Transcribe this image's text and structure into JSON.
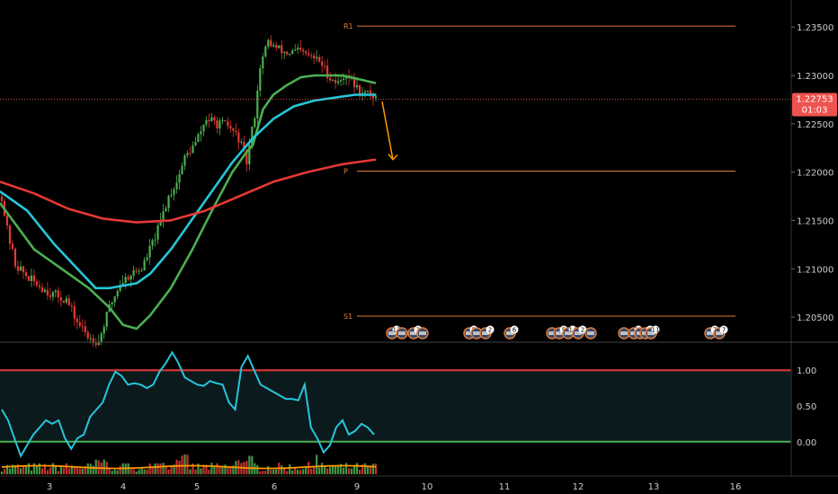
{
  "chart_data": [
    {
      "type": "candlestick",
      "title": "",
      "x_ticks": [
        "3",
        "4",
        "5",
        "6",
        "9",
        "10",
        "11",
        "12",
        "13",
        "16"
      ],
      "y_ticks": [
        "1.23500",
        "1.23000",
        "1.22500",
        "1.22000",
        "1.21500",
        "1.21000",
        "1.20500"
      ],
      "ylim": [
        1.2025,
        1.2378
      ],
      "current_price": "1.22753",
      "countdown": "01:03",
      "pivot_levels": [
        {
          "label": "R1",
          "value": 1.2351
        },
        {
          "label": "P",
          "value": 1.2201
        },
        {
          "label": "S1",
          "value": 1.2051
        }
      ],
      "series": [
        {
          "name": "",
          "kind": "ema-fast",
          "color": "#4caf50",
          "points": [
            [
              0,
              1.2168
            ],
            [
              0.5,
              1.212
            ],
            [
              1,
              1.2095
            ],
            [
              1.3,
              1.208
            ],
            [
              1.6,
              1.206
            ],
            [
              1.8,
              1.2042
            ],
            [
              2.0,
              1.2038
            ],
            [
              2.2,
              1.2052
            ],
            [
              2.5,
              1.208
            ],
            [
              2.8,
              1.2118
            ],
            [
              3.1,
              1.216
            ],
            [
              3.4,
              1.22
            ],
            [
              3.6,
              1.222
            ],
            [
              3.7,
              1.2228
            ],
            [
              3.85,
              1.2265
            ],
            [
              4.0,
              1.228
            ],
            [
              4.2,
              1.229
            ],
            [
              4.4,
              1.2298
            ],
            [
              4.6,
              1.23
            ],
            [
              4.8,
              1.23
            ],
            [
              5.0,
              1.23
            ],
            [
              5.2,
              1.2297
            ],
            [
              5.5,
              1.2292
            ]
          ]
        },
        {
          "name": "",
          "kind": "ema-mid",
          "color": "#26c6da",
          "points": [
            [
              0,
              1.218
            ],
            [
              0.4,
              1.216
            ],
            [
              0.8,
              1.2125
            ],
            [
              1.2,
              1.2095
            ],
            [
              1.4,
              1.208
            ],
            [
              1.6,
              1.208
            ],
            [
              2.0,
              1.2085
            ],
            [
              2.2,
              1.2095
            ],
            [
              2.5,
              1.212
            ],
            [
              2.8,
              1.215
            ],
            [
              3.1,
              1.218
            ],
            [
              3.4,
              1.221
            ],
            [
              3.7,
              1.2235
            ],
            [
              4.0,
              1.2255
            ],
            [
              4.3,
              1.2268
            ],
            [
              4.6,
              1.2274
            ],
            [
              4.9,
              1.2277
            ],
            [
              5.2,
              1.228
            ],
            [
              5.5,
              1.228
            ]
          ]
        },
        {
          "name": "",
          "kind": "ema-slow",
          "color": "#e53935",
          "points": [
            [
              0,
              1.219
            ],
            [
              0.5,
              1.2178
            ],
            [
              1.0,
              1.2162
            ],
            [
              1.5,
              1.2152
            ],
            [
              2.0,
              1.2148
            ],
            [
              2.5,
              1.215
            ],
            [
              3.0,
              1.216
            ],
            [
              3.5,
              1.2175
            ],
            [
              4.0,
              1.219
            ],
            [
              4.5,
              1.22
            ],
            [
              5.0,
              1.2208
            ],
            [
              5.5,
              1.2213
            ]
          ]
        }
      ],
      "projection": {
        "color": "#ff9800",
        "from": [
          5.6,
          1.2273
        ],
        "to": [
          5.8,
          1.2213
        ]
      }
    },
    {
      "type": "line",
      "title": "",
      "y_ticks": [
        "1.00",
        "0.50",
        "0.00"
      ],
      "ylim": [
        -0.48,
        1.38
      ],
      "bands": [
        {
          "value": 1.0,
          "color": "#e53935"
        },
        {
          "value": 0.0,
          "color": "#4caf50"
        }
      ],
      "series": [
        {
          "name": "",
          "color": "#26c6da",
          "values": [
            0.45,
            0.3,
            0.05,
            -0.2,
            -0.05,
            0.1,
            0.2,
            0.3,
            0.25,
            0.3,
            0.05,
            -0.1,
            0.05,
            0.1,
            0.35,
            0.45,
            0.55,
            0.8,
            0.98,
            0.92,
            0.8,
            0.82,
            0.8,
            0.75,
            0.8,
            0.98,
            1.1,
            1.25,
            1.1,
            0.9,
            0.85,
            0.8,
            0.78,
            0.85,
            0.82,
            0.8,
            0.55,
            0.45,
            1.05,
            1.2,
            1.0,
            0.8,
            0.75,
            0.7,
            0.65,
            0.6,
            0.6,
            0.58,
            0.8,
            0.2,
            0.05,
            -0.15,
            -0.05,
            0.2,
            0.3,
            0.1,
            0.15,
            0.25,
            0.2,
            0.1
          ]
        }
      ]
    }
  ],
  "axis": {
    "x_ticks": [
      "3",
      "4",
      "5",
      "6",
      "9",
      "10",
      "11",
      "12",
      "13",
      "16"
    ]
  },
  "events": [
    {
      "label": "13",
      "count": 2
    },
    {
      "label": "3",
      "count": 3
    },
    {
      "label": "5",
      "count": 3
    },
    {
      "label": "2",
      "count": 1
    },
    {
      "label": "6",
      "count": 1
    },
    {
      "label": "5",
      "count": 2
    },
    {
      "label": "14",
      "count": 2
    },
    {
      "label": "2",
      "count": 1
    },
    {
      "label": "",
      "count": 1
    },
    {
      "label": "36",
      "count": 3
    },
    {
      "label": "2",
      "count": 2
    },
    {
      "label": "11",
      "count": 1
    },
    {
      "label": "7",
      "count": 1
    },
    {
      "label": "7",
      "count": 1
    }
  ]
}
